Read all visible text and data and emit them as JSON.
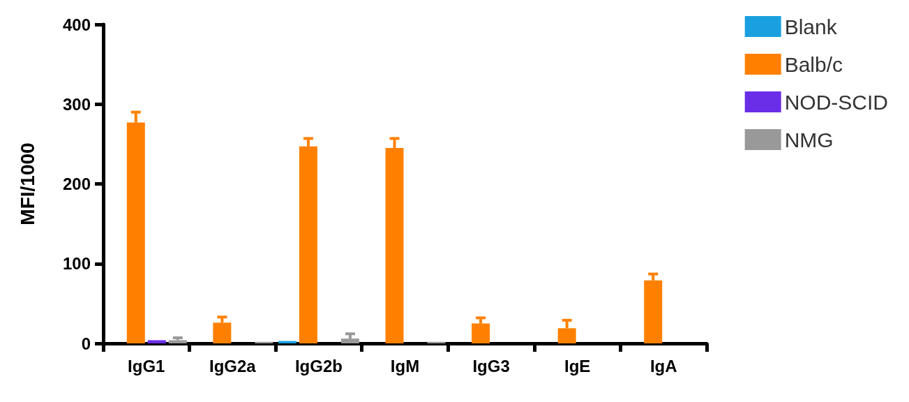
{
  "chart_data": {
    "type": "bar",
    "ylabel": "MFI/1000",
    "categories": [
      "IgG1",
      "IgG2a",
      "IgG2b",
      "IgM",
      "IgG3",
      "IgE",
      "IgA"
    ],
    "ylim": [
      0,
      400
    ],
    "yticks": [
      0,
      100,
      200,
      300,
      400
    ],
    "grid": false,
    "legend": "top right",
    "series": [
      {
        "name": "Blank",
        "color": "#1aa0e0",
        "values": [
          0,
          0,
          3,
          0,
          0,
          0,
          0
        ],
        "errors": [
          null,
          null,
          null,
          null,
          null,
          null,
          null
        ]
      },
      {
        "name": "Balb/c",
        "color": "#ff8000",
        "values": [
          277,
          26,
          247,
          245,
          25,
          19,
          79
        ],
        "errors": [
          [
            277,
            290
          ],
          [
            26,
            33
          ],
          [
            247,
            257
          ],
          [
            245,
            257
          ],
          [
            25,
            32
          ],
          [
            19,
            29
          ],
          [
            79,
            87
          ]
        ]
      },
      {
        "name": "NOD-SCID",
        "color": "#6b2ee8",
        "values": [
          4,
          0,
          0,
          0,
          0,
          0,
          0
        ],
        "errors": [
          null,
          null,
          null,
          null,
          null,
          null,
          null
        ]
      },
      {
        "name": "NMG",
        "color": "#999999",
        "values": [
          4,
          2,
          6,
          2,
          0,
          0,
          0
        ],
        "errors": [
          [
            4,
            7
          ],
          null,
          [
            6,
            12
          ],
          null,
          null,
          null,
          null
        ]
      }
    ]
  }
}
